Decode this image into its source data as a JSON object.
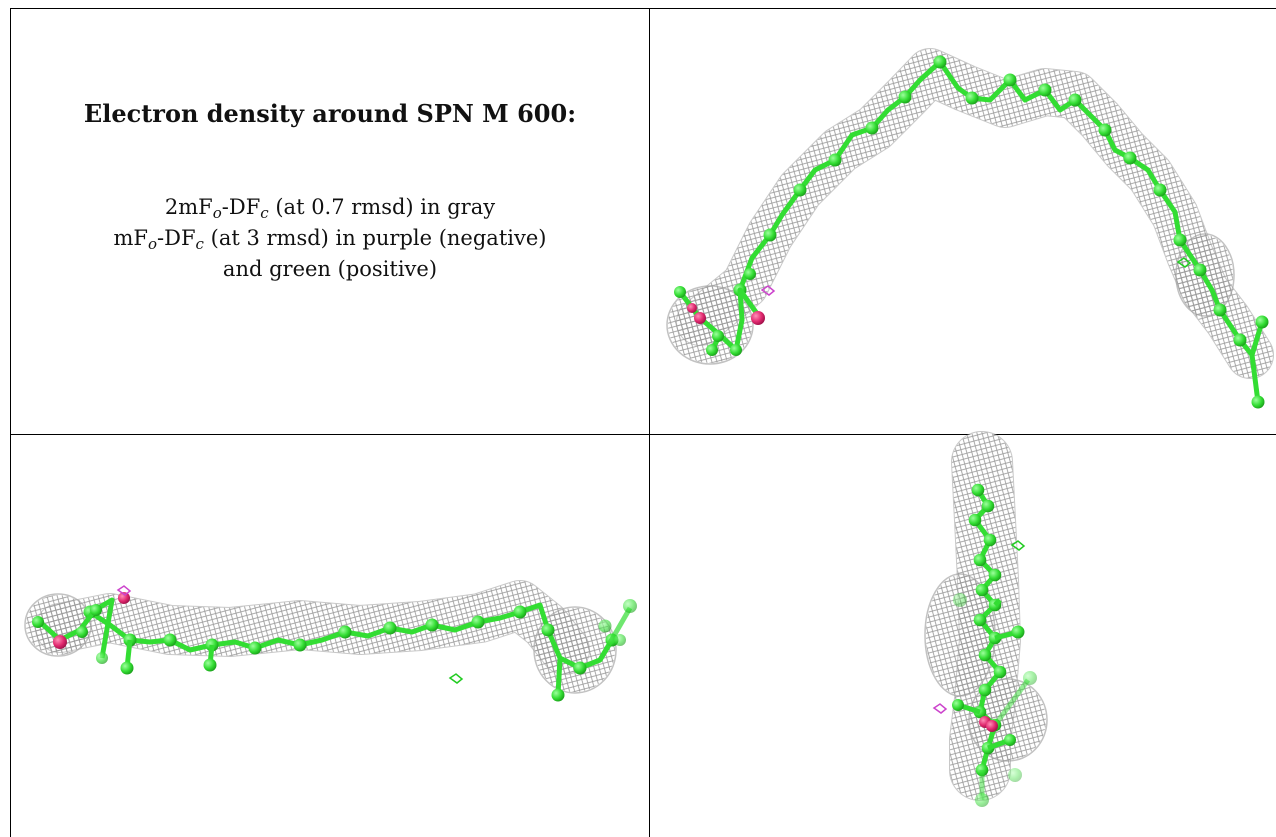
{
  "caption": {
    "title": "Electron density around SPN M 600:",
    "line1": {
      "pre": "2mF",
      "s1": "o",
      "mid": "-DF",
      "s2": "c",
      "post": " (at 0.7 rmsd) in gray"
    },
    "line2": {
      "pre": "mF",
      "s1": "o",
      "mid": "-DF",
      "s2": "c",
      "post": " (at 3 rmsd) in purple (negative)"
    },
    "line3": "and green (positive)"
  },
  "colors": {
    "mesh": "#9a9a9a",
    "carbon": "#33dd33",
    "oxygen": "#e0286e",
    "negative_density": "#cc44cc",
    "positive_density": "#22cc22"
  },
  "views": [
    {
      "name": "view-top-right"
    },
    {
      "name": "view-bottom-left"
    },
    {
      "name": "view-bottom-right"
    }
  ]
}
